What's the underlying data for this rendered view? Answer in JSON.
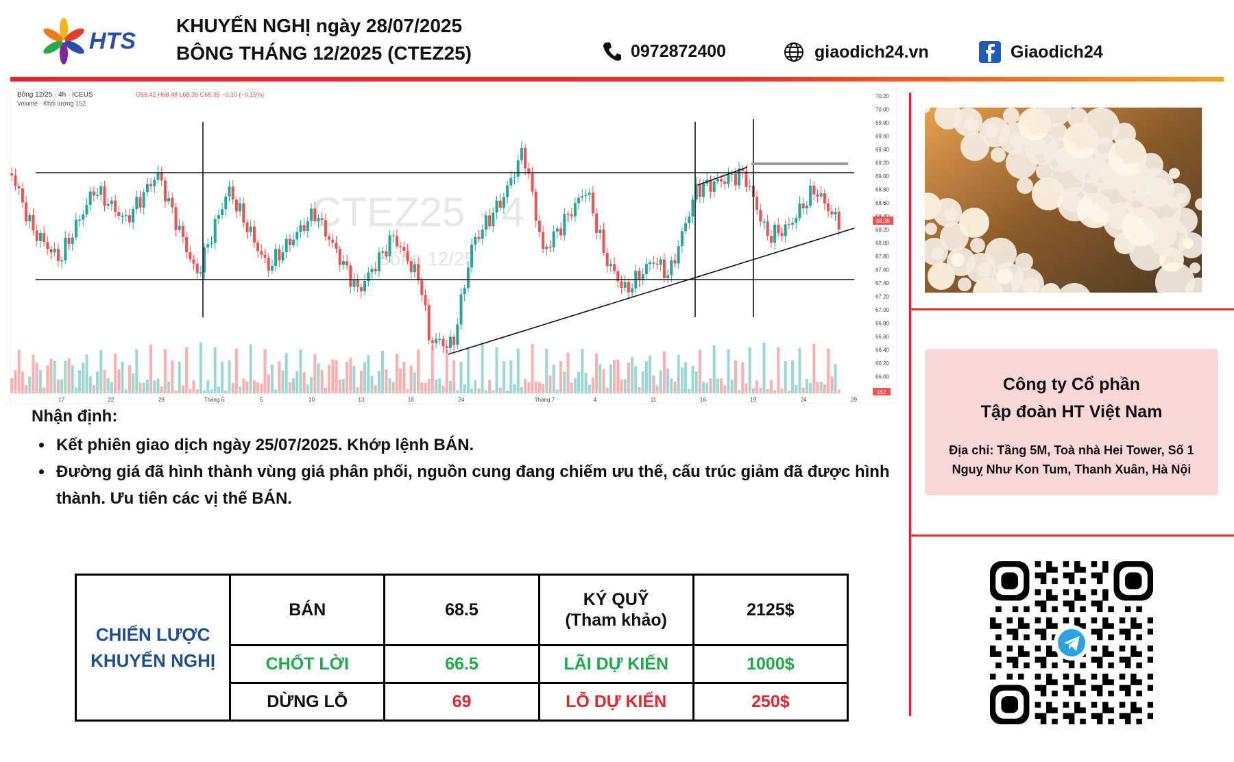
{
  "header": {
    "brand": "HTS",
    "title_line1": "KHUYẾN NGHỊ ngày 28/07/2025",
    "title_line2": "BÔNG THÁNG 12/2025 (CTEZ25)",
    "phone": "0972872400",
    "website": "giaodich24.vn",
    "facebook": "Giaodich24"
  },
  "chart": {
    "symbol_info": "Bông 12/25 · 4h · ICEUS",
    "ohlc": "O68.42 H68.48 L68.35 C68.35 −0.10 (−0.15%)",
    "volume_label": "Volume · Khối lượng 152",
    "watermark": "CTEZ25 · 4",
    "watermark_sub": "Bông 12/25",
    "last_price": "68.35",
    "volume_badge": "152",
    "price_ticks": [
      "70.20",
      "70.00",
      "69.80",
      "69.60",
      "69.40",
      "69.20",
      "69.00",
      "68.80",
      "68.60",
      "68.40",
      "68.20",
      "68.00",
      "67.80",
      "67.60",
      "67.40",
      "67.20",
      "67.00",
      "66.80",
      "66.60",
      "66.40",
      "66.20",
      "66.00"
    ],
    "date_ticks": [
      "17",
      "22",
      "28",
      "Tháng 6",
      "5",
      "10",
      "13",
      "18",
      "24",
      "Tháng 7",
      "4",
      "11",
      "16",
      "19",
      "24",
      "29"
    ]
  },
  "analysis": {
    "heading": "Nhận định:",
    "bullets": [
      "Kết phiên giao dịch ngày 25/07/2025. Khớp lệnh BÁN.",
      "Đường giá đã hình thành vùng giá phân phối, nguồn cung đang chiếm ưu thế, cấu trúc giảm đã được hình thành. Ưu tiên các vị thế BÁN."
    ]
  },
  "table": {
    "strategy": [
      "CHIẾN LƯỢC",
      "KHUYẾN NGHỊ"
    ],
    "rows": [
      [
        "BÁN",
        "68.5",
        "KÝ QUỸ\n(Tham khảo)",
        "2125$"
      ],
      [
        "CHỐT LỜI",
        "66.5",
        "LÃI DỰ KIẾN",
        "1000$"
      ],
      [
        "DỪNG LỖ",
        "69",
        "LỖ DỰ KIẾN",
        "250$"
      ]
    ]
  },
  "company": {
    "name": [
      "Công ty Cổ phần",
      "Tập đoàn HT Việt Nam"
    ],
    "address": [
      "Địa chỉ: Tầng 5M, Toà nhà Hei Tower, Số 1",
      "Nguỵ Như Kon Tum, Thanh Xuân, Hà Nội"
    ]
  }
}
